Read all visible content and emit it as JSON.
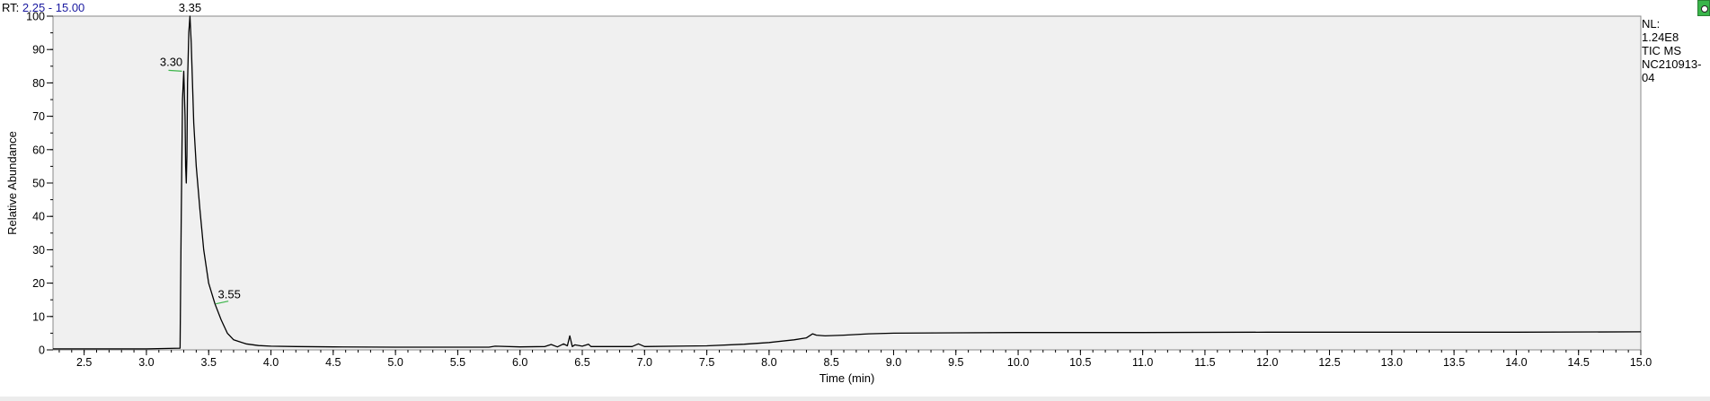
{
  "header": {
    "rt_label": "RT:",
    "rt_range": "2.25 - 15.00"
  },
  "info": {
    "nl_label": "NL:",
    "nl_value": "1.24E8",
    "scan_type": "TIC  MS",
    "sample_line1": "NC210913-",
    "sample_line2": "04"
  },
  "chart_data": {
    "type": "line",
    "xlabel": "Time (min)",
    "ylabel": "Relative Abundance",
    "xlim": [
      2.25,
      15.0
    ],
    "ylim": [
      0,
      100
    ],
    "x_ticks": [
      2.5,
      3.0,
      3.5,
      4.0,
      4.5,
      5.0,
      5.5,
      6.0,
      6.5,
      7.0,
      7.5,
      8.0,
      8.5,
      9.0,
      9.5,
      10.0,
      10.5,
      11.0,
      11.5,
      12.0,
      12.5,
      13.0,
      13.5,
      14.0,
      14.5,
      15.0
    ],
    "y_ticks": [
      0,
      10,
      20,
      30,
      40,
      50,
      60,
      70,
      80,
      90,
      100
    ],
    "grid": false,
    "series": [
      {
        "x": [
          2.25,
          3.0,
          3.27,
          3.28,
          3.29,
          3.3,
          3.31,
          3.315,
          3.32,
          3.325,
          3.33,
          3.34,
          3.35,
          3.36,
          3.37,
          3.38,
          3.4,
          3.43,
          3.46,
          3.5,
          3.55,
          3.6,
          3.65,
          3.7,
          3.8,
          3.9,
          4.0,
          4.2,
          4.5,
          5.0,
          5.5,
          5.75,
          5.8,
          6.0,
          6.2,
          6.25,
          6.3,
          6.35,
          6.38,
          6.4,
          6.42,
          6.44,
          6.5,
          6.55,
          6.57,
          6.6,
          6.9,
          6.95,
          7.0,
          7.5,
          7.8,
          8.0,
          8.2,
          8.3,
          8.35,
          8.38,
          8.45,
          8.6,
          8.8,
          9.0,
          9.5,
          10.0,
          11.0,
          12.0,
          13.0,
          14.0,
          15.0
        ],
        "y": [
          0.3,
          0.3,
          0.5,
          40,
          75,
          83.5,
          70,
          55,
          50,
          58,
          80,
          95,
          100,
          92,
          80,
          68,
          55,
          42,
          30,
          20,
          13.8,
          9,
          5,
          3,
          1.8,
          1.3,
          1.1,
          1.0,
          0.9,
          0.8,
          0.8,
          0.8,
          1.1,
          0.9,
          1.0,
          1.6,
          0.9,
          1.8,
          1.2,
          4.2,
          1.0,
          1.5,
          1.1,
          1.7,
          1.0,
          1.0,
          1.0,
          1.8,
          1.0,
          1.2,
          1.7,
          2.2,
          3.0,
          3.6,
          4.8,
          4.4,
          4.2,
          4.4,
          4.8,
          5.0,
          5.1,
          5.2,
          5.2,
          5.3,
          5.3,
          5.3,
          5.4
        ]
      }
    ],
    "annotations": [
      {
        "x": 3.35,
        "y": 100,
        "label": "3.35"
      },
      {
        "x": 3.3,
        "y": 83.5,
        "label": "3.30"
      },
      {
        "x": 3.55,
        "y": 13.8,
        "label": "3.55"
      }
    ],
    "colors": {
      "plot_background": "#f0f0f0",
      "trace": "#000000",
      "peak_marker": "#3cb54a",
      "rt_value": "#1a1aa0"
    }
  }
}
